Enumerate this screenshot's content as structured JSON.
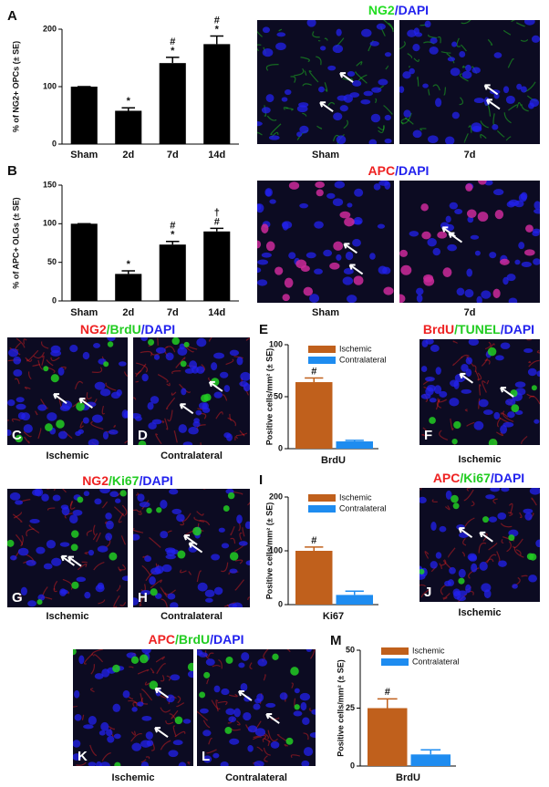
{
  "chart_data": [
    {
      "type": "bar",
      "panel": "A",
      "y_label": "% of NG2+ OPCs (± SE)",
      "categories": [
        "Sham",
        "2d",
        "7d",
        "14d"
      ],
      "values": [
        100,
        58,
        141,
        174
      ],
      "errors": [
        0,
        5,
        10,
        14
      ],
      "annotations": [
        [],
        [
          "*"
        ],
        [
          "#",
          "*"
        ],
        [
          "#",
          "*"
        ]
      ],
      "color": "#000000",
      "ylim": [
        0,
        200
      ],
      "yticks": [
        0,
        100,
        200
      ]
    },
    {
      "type": "bar",
      "panel": "B",
      "y_label": "% of APC+ OLGs (± SE)",
      "categories": [
        "Sham",
        "2d",
        "7d",
        "14d"
      ],
      "values": [
        100,
        35,
        73,
        90
      ],
      "errors": [
        0,
        4,
        4,
        4
      ],
      "annotations": [
        [],
        [
          "*"
        ],
        [
          "#",
          "*"
        ],
        [
          "†",
          "#"
        ]
      ],
      "color": "#000000",
      "ylim": [
        0,
        150
      ],
      "yticks": [
        0,
        50,
        100,
        150
      ]
    },
    {
      "type": "bar",
      "panel": "E",
      "y_label": "Positive cells/mm² (± SE)",
      "categories": [
        "BrdU"
      ],
      "series": [
        {
          "name": "Ischemic",
          "color": "#c0601c",
          "values": [
            64
          ],
          "errors": [
            4
          ],
          "annotations": [
            [
              "#"
            ]
          ]
        },
        {
          "name": "Contralateral",
          "color": "#1e8cf0",
          "values": [
            7
          ],
          "errors": [
            1
          ],
          "annotations": [
            []
          ]
        }
      ],
      "ylim": [
        0,
        100
      ],
      "yticks": [
        0,
        50,
        100
      ]
    },
    {
      "type": "bar",
      "panel": "I",
      "y_label": "Positive cells/mm² (± SE)",
      "categories": [
        "Ki67"
      ],
      "series": [
        {
          "name": "Ischemic",
          "color": "#c0601c",
          "values": [
            100
          ],
          "errors": [
            7
          ],
          "annotations": [
            [
              "#"
            ]
          ]
        },
        {
          "name": "Contralateral",
          "color": "#1e8cf0",
          "values": [
            18
          ],
          "errors": [
            7
          ],
          "annotations": [
            []
          ]
        }
      ],
      "ylim": [
        0,
        200
      ],
      "yticks": [
        0,
        100,
        200
      ]
    },
    {
      "type": "bar",
      "panel": "M",
      "y_label": "Positive cells/mm² (± SE)",
      "categories": [
        "BrdU"
      ],
      "series": [
        {
          "name": "Ischemic",
          "color": "#c0601c",
          "values": [
            25
          ],
          "errors": [
            4
          ],
          "annotations": [
            [
              "#"
            ]
          ]
        },
        {
          "name": "Contralateral",
          "color": "#1e8cf0",
          "values": [
            5
          ],
          "errors": [
            2
          ],
          "annotations": [
            []
          ]
        }
      ],
      "ylim": [
        0,
        50
      ],
      "yticks": [
        0,
        25,
        50
      ]
    }
  ],
  "images": [
    {
      "title": [
        {
          "text": "NG2",
          "color": "#22dd22"
        },
        {
          "text": "/DAPI",
          "color": "#2222ee"
        }
      ],
      "frames": [
        {
          "label": "Sham"
        },
        {
          "label": "7d"
        }
      ]
    },
    {
      "title": [
        {
          "text": "APC",
          "color": "#ee2222"
        },
        {
          "text": "/DAPI",
          "color": "#2222ee"
        }
      ],
      "frames": [
        {
          "label": "Sham"
        },
        {
          "label": "7d"
        }
      ]
    },
    {
      "title": [
        {
          "text": "NG2",
          "color": "#ee2222"
        },
        {
          "text": "/BrdU",
          "color": "#22cc22"
        },
        {
          "text": "/DAPI",
          "color": "#2222ee"
        }
      ],
      "frames": [
        {
          "label": "Ischemic",
          "panel": "C"
        },
        {
          "label": "Contralateral",
          "panel": "D"
        }
      ]
    },
    {
      "title": [
        {
          "text": "BrdU",
          "color": "#ee2222"
        },
        {
          "text": "/TUNEL",
          "color": "#22cc22"
        },
        {
          "text": "/DAPI",
          "color": "#2222ee"
        }
      ],
      "frames": [
        {
          "label": "Ischemic",
          "panel": "F"
        }
      ]
    },
    {
      "title": [
        {
          "text": "NG2",
          "color": "#ee2222"
        },
        {
          "text": "/Ki67",
          "color": "#22cc22"
        },
        {
          "text": "/DAPI",
          "color": "#2222ee"
        }
      ],
      "frames": [
        {
          "label": "Ischemic",
          "panel": "G"
        },
        {
          "label": "Contralateral",
          "panel": "H"
        }
      ]
    },
    {
      "title": [
        {
          "text": "APC",
          "color": "#ee2222"
        },
        {
          "text": "/Ki67",
          "color": "#22cc22"
        },
        {
          "text": "/DAPI",
          "color": "#2222ee"
        }
      ],
      "frames": [
        {
          "label": "Ischemic",
          "panel": "J"
        }
      ]
    },
    {
      "title": [
        {
          "text": "APC",
          "color": "#ee2222"
        },
        {
          "text": "/BrdU",
          "color": "#22cc22"
        },
        {
          "text": "/DAPI",
          "color": "#2222ee"
        }
      ],
      "frames": [
        {
          "label": "Ischemic",
          "panel": "K"
        },
        {
          "label": "Contralateral",
          "panel": "L"
        }
      ]
    }
  ]
}
